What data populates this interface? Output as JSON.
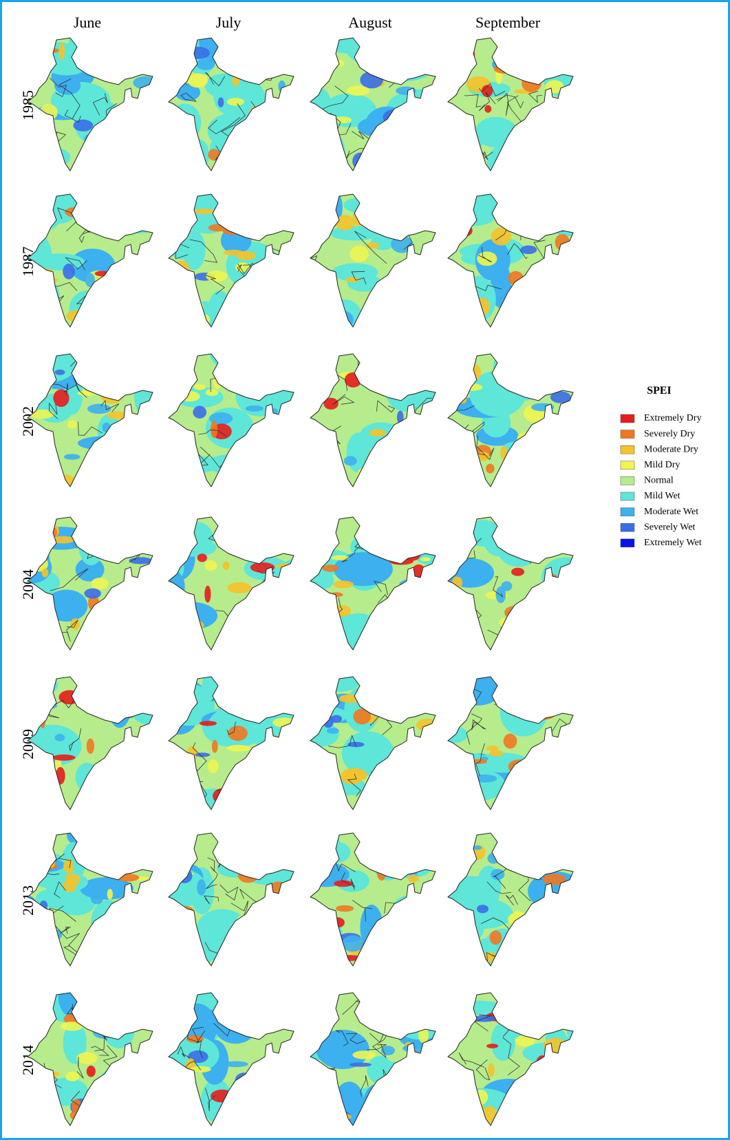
{
  "columns": [
    "June",
    "July",
    "August",
    "September"
  ],
  "rows": [
    "1985",
    "1987",
    "2002",
    "2004",
    "2009",
    "2013",
    "2014"
  ],
  "legend": {
    "title": "SPEI",
    "items": [
      {
        "label": "Extremely Dry",
        "color": "#e81c1c"
      },
      {
        "label": "Severely Dry",
        "color": "#f07820"
      },
      {
        "label": "Moderate Dry",
        "color": "#f5c22a"
      },
      {
        "label": "Mild Dry",
        "color": "#eef550"
      },
      {
        "label": "Normal",
        "color": "#b6ec8c"
      },
      {
        "label": "Mild Wet",
        "color": "#5ee6d8"
      },
      {
        "label": "Moderate Wet",
        "color": "#3db0ef"
      },
      {
        "label": "Severely Wet",
        "color": "#3a6ee8"
      },
      {
        "label": "Extremely Wet",
        "color": "#0a14e6"
      }
    ]
  }
}
